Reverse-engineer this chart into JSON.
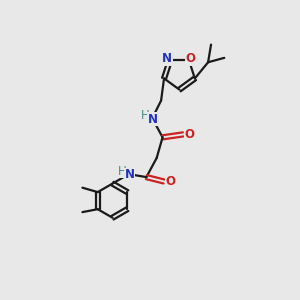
{
  "bg_color": "#e8e8e8",
  "bond_color": "#1a1a1a",
  "N_color": "#2233bb",
  "O_color": "#cc2222",
  "H_color": "#4a8a8a",
  "font_size": 8.5,
  "line_width": 1.6,
  "fig_size": [
    3.0,
    3.0
  ],
  "dpi": 100,
  "xlim": [
    0,
    10
  ],
  "ylim": [
    0,
    10
  ]
}
